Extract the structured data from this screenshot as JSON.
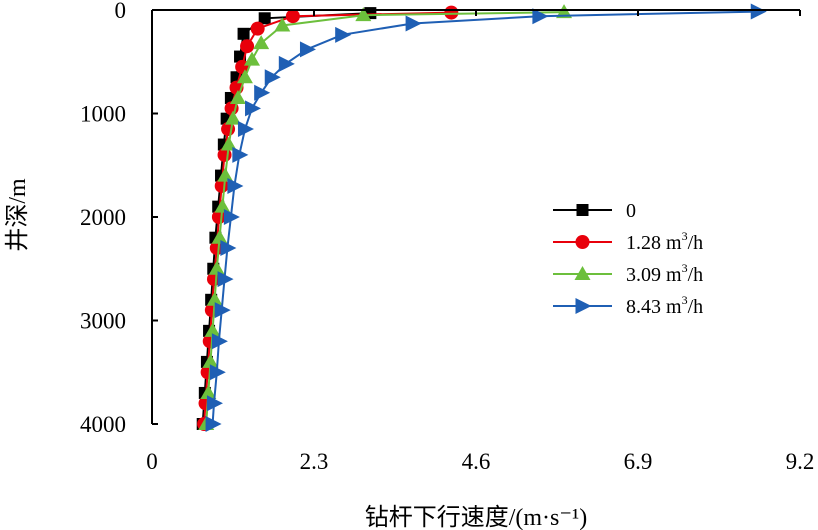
{
  "chart_data": {
    "type": "line",
    "title": "",
    "xlabel": "钻杆下行速度/(m·s⁻¹)",
    "ylabel": "井深/m",
    "xlim": [
      0,
      9.2
    ],
    "ylim": [
      0,
      4000
    ],
    "y_inverted": true,
    "x_ticks": [
      "0",
      "2.3",
      "4.6",
      "6.9",
      "9.2"
    ],
    "y_ticks": [
      "0",
      "1000",
      "2000",
      "3000",
      "4000"
    ],
    "legend_position": "right",
    "series": [
      {
        "name": "0",
        "display": {
          "main": "0",
          "sup": "",
          "rest": ""
        },
        "color": "#000000",
        "marker": "square",
        "points": [
          [
            3.1,
            30
          ],
          [
            1.6,
            80
          ],
          [
            1.3,
            230
          ],
          [
            1.25,
            450
          ],
          [
            1.2,
            650
          ],
          [
            1.12,
            850
          ],
          [
            1.06,
            1050
          ],
          [
            1.02,
            1300
          ],
          [
            0.98,
            1600
          ],
          [
            0.94,
            1900
          ],
          [
            0.9,
            2200
          ],
          [
            0.87,
            2500
          ],
          [
            0.84,
            2800
          ],
          [
            0.81,
            3100
          ],
          [
            0.78,
            3400
          ],
          [
            0.75,
            3700
          ],
          [
            0.72,
            4000
          ]
        ]
      },
      {
        "name": "1.28 m3/h",
        "display": {
          "main": "1.28 m",
          "sup": "3",
          "rest": "/h"
        },
        "color": "#e8000b",
        "marker": "circle",
        "points": [
          [
            4.25,
            25
          ],
          [
            2.0,
            60
          ],
          [
            1.5,
            180
          ],
          [
            1.35,
            350
          ],
          [
            1.28,
            550
          ],
          [
            1.2,
            750
          ],
          [
            1.13,
            950
          ],
          [
            1.08,
            1150
          ],
          [
            1.03,
            1400
          ],
          [
            0.99,
            1700
          ],
          [
            0.95,
            2000
          ],
          [
            0.92,
            2300
          ],
          [
            0.88,
            2600
          ],
          [
            0.85,
            2900
          ],
          [
            0.82,
            3200
          ],
          [
            0.79,
            3500
          ],
          [
            0.76,
            3800
          ],
          [
            0.74,
            4000
          ]
        ]
      },
      {
        "name": "3.09 m3/h",
        "display": {
          "main": "3.09 m",
          "sup": "3",
          "rest": "/h"
        },
        "color": "#6cbf3c",
        "marker": "triangle-up",
        "points": [
          [
            5.85,
            20
          ],
          [
            3.0,
            50
          ],
          [
            1.85,
            150
          ],
          [
            1.55,
            320
          ],
          [
            1.42,
            480
          ],
          [
            1.32,
            650
          ],
          [
            1.22,
            850
          ],
          [
            1.15,
            1050
          ],
          [
            1.09,
            1300
          ],
          [
            1.04,
            1600
          ],
          [
            1.0,
            1900
          ],
          [
            0.96,
            2200
          ],
          [
            0.92,
            2500
          ],
          [
            0.89,
            2800
          ],
          [
            0.86,
            3100
          ],
          [
            0.83,
            3400
          ],
          [
            0.8,
            3700
          ],
          [
            0.77,
            4000
          ]
        ]
      },
      {
        "name": "8.43 m3/h",
        "display": {
          "main": "8.43 m",
          "sup": "3",
          "rest": "/h"
        },
        "color": "#1f5fb4",
        "marker": "triangle-right",
        "points": [
          [
            8.6,
            15
          ],
          [
            5.5,
            60
          ],
          [
            3.7,
            130
          ],
          [
            2.7,
            240
          ],
          [
            2.2,
            380
          ],
          [
            1.9,
            520
          ],
          [
            1.7,
            650
          ],
          [
            1.55,
            800
          ],
          [
            1.42,
            950
          ],
          [
            1.32,
            1150
          ],
          [
            1.24,
            1400
          ],
          [
            1.17,
            1700
          ],
          [
            1.12,
            2000
          ],
          [
            1.07,
            2300
          ],
          [
            1.03,
            2600
          ],
          [
            0.99,
            2900
          ],
          [
            0.95,
            3200
          ],
          [
            0.92,
            3500
          ],
          [
            0.88,
            3800
          ],
          [
            0.86,
            4000
          ]
        ]
      }
    ]
  }
}
